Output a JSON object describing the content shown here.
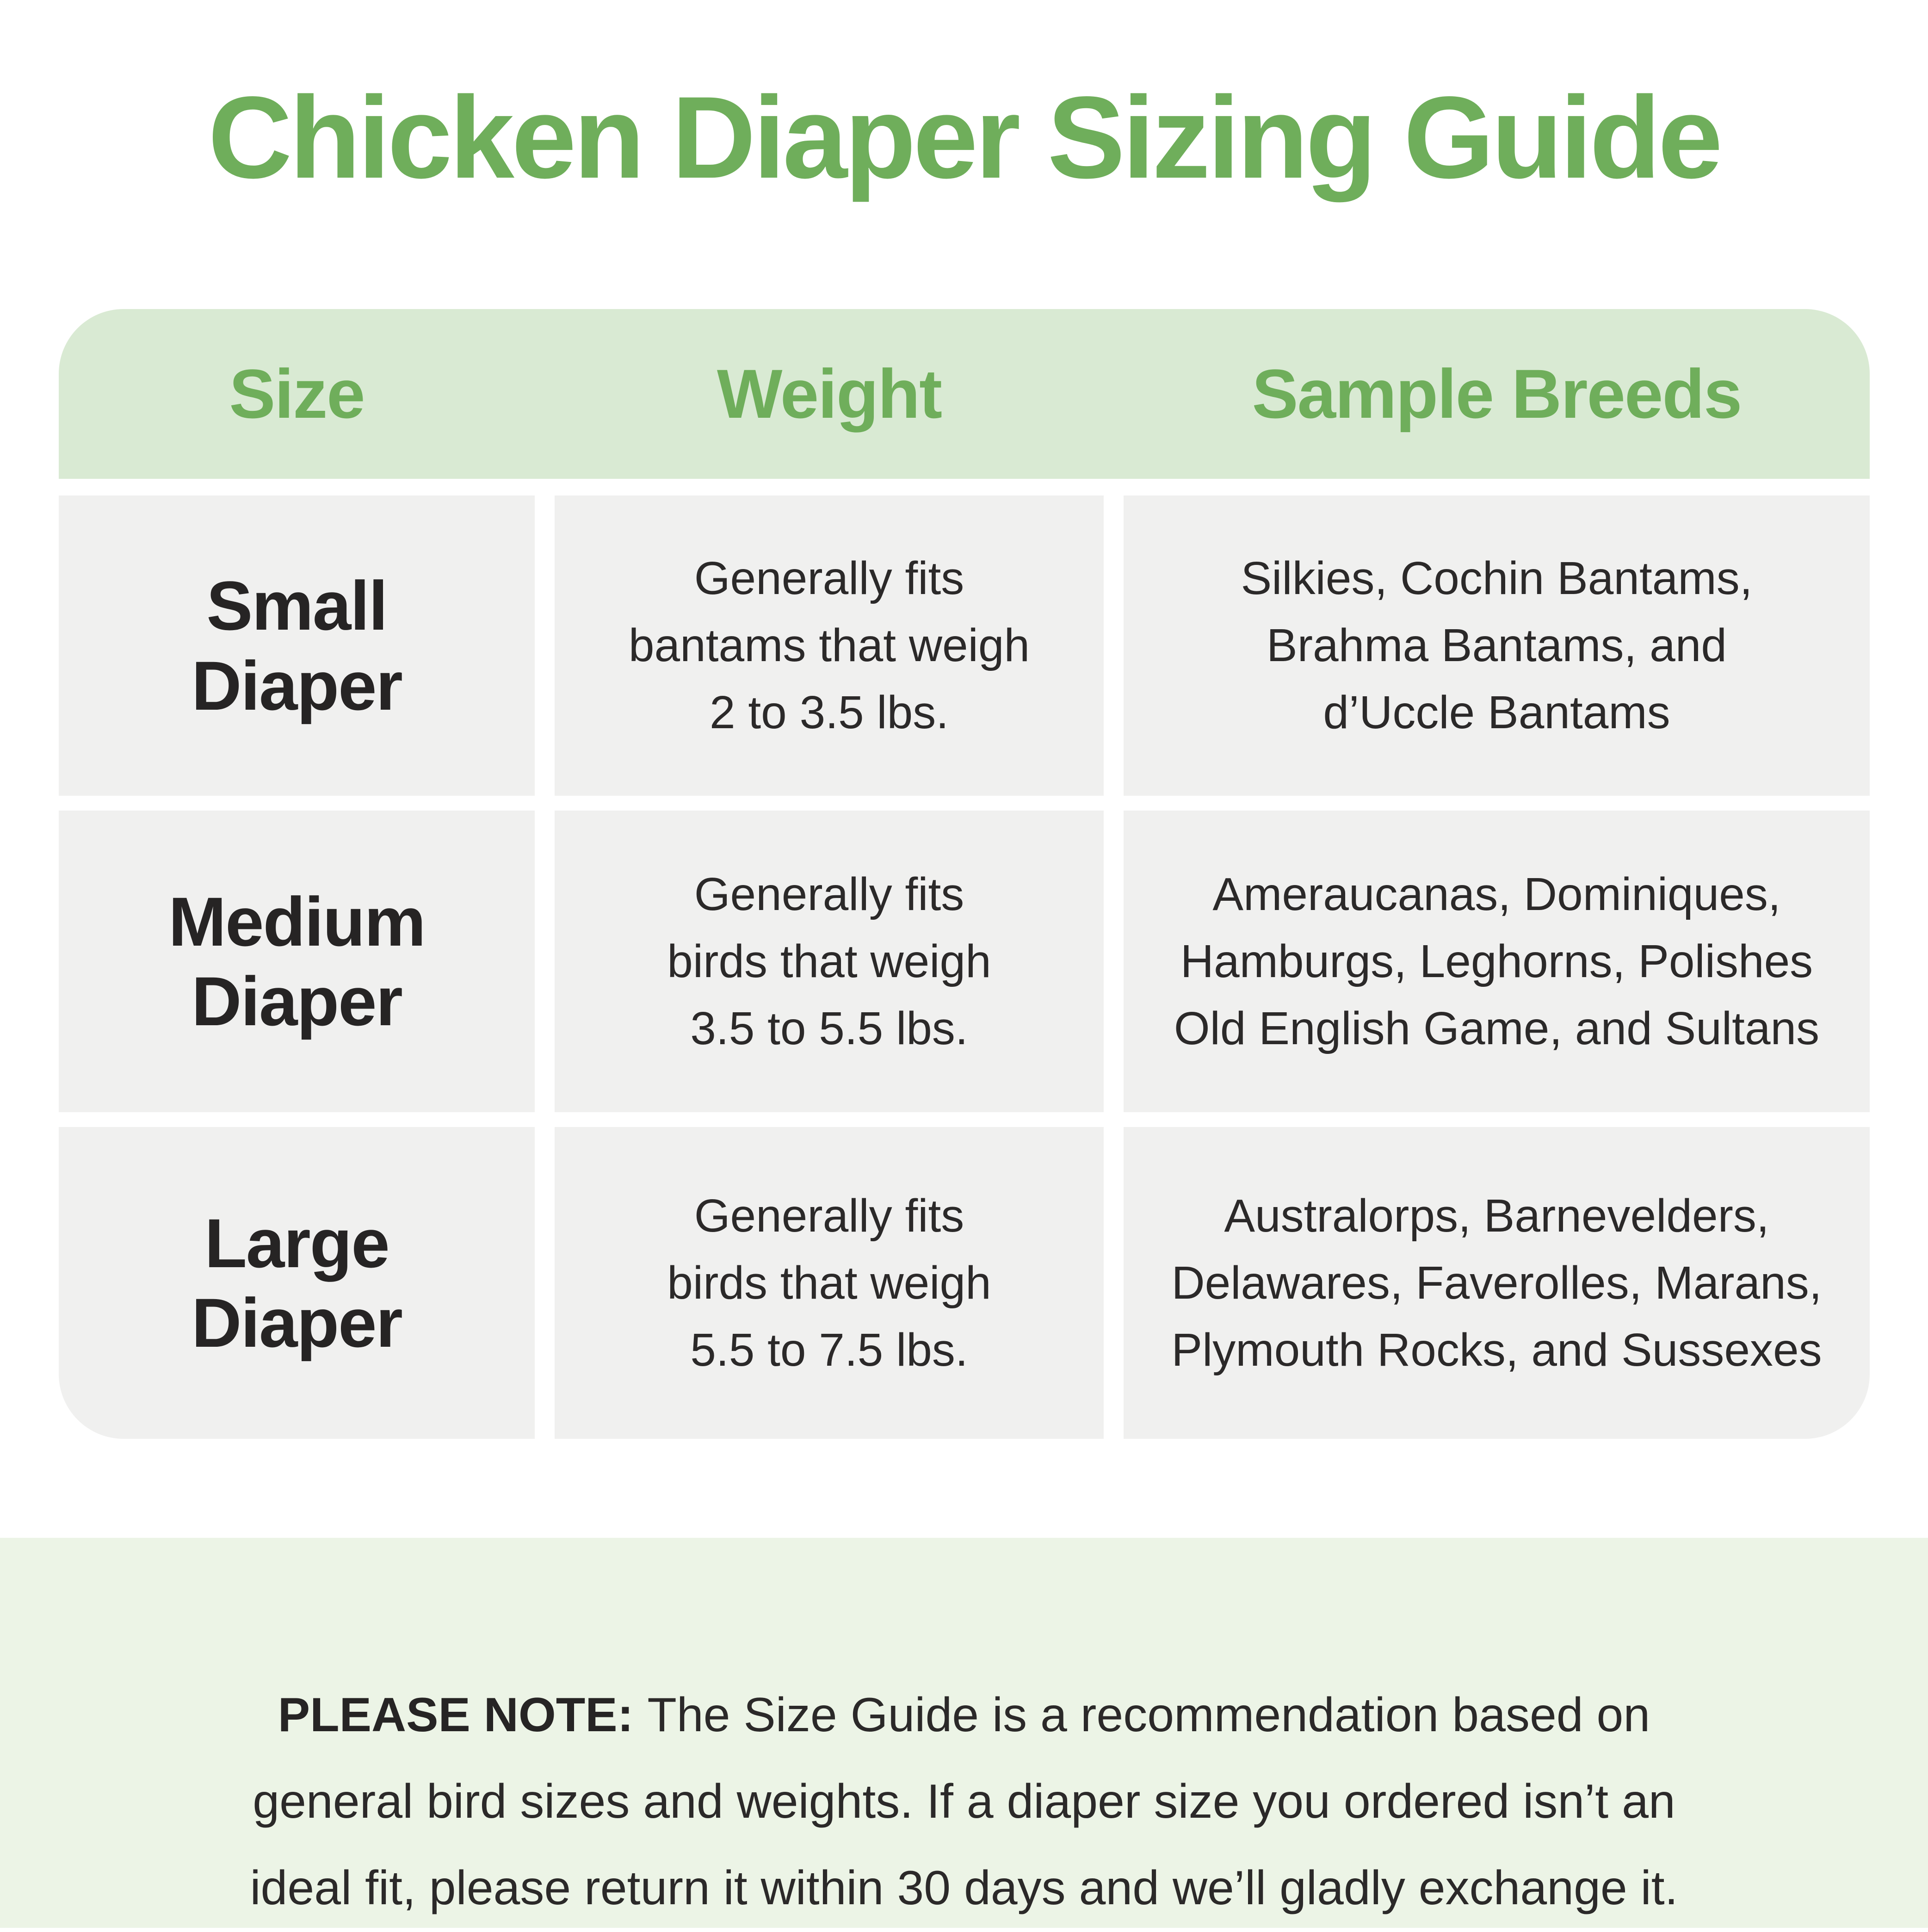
{
  "page": {
    "title": "Chicken Diaper Sizing Guide"
  },
  "colors": {
    "title_green": "#6FAE5B",
    "header_bg": "#D9EAD3",
    "cell_bg": "#F0F0EF",
    "footer_bg": "#ECF4E6",
    "text_dark": "#2B2929"
  },
  "table": {
    "headers": [
      "Size",
      "Weight",
      "Sample Breeds"
    ],
    "rows": [
      {
        "size": "Small\nDiaper",
        "weight": "Generally fits\nbantams that weigh\n2 to 3.5 lbs.",
        "breeds": "Silkies, Cochin Bantams,\nBrahma Bantams, and\nd’Uccle Bantams"
      },
      {
        "size": "Medium\nDiaper",
        "weight": "Generally fits\nbirds that weigh\n3.5 to 5.5 lbs.",
        "breeds": "Ameraucanas, Dominiques,\nHamburgs, Leghorns, Polishes\nOld English Game, and Sultans"
      },
      {
        "size": "Large\nDiaper",
        "weight": "Generally fits\nbirds that weigh\n5.5 to 7.5 lbs.",
        "breeds": "Australorps, Barnevelders,\nDelawares, Faverolles, Marans,\nPlymouth Rocks, and Sussexes"
      }
    ]
  },
  "footer": {
    "note_label": "PLEASE NOTE:",
    "note_text": "The Size Guide is a recommendation based on\ngeneral bird sizes and weights. If a diaper size you ordered isn’t an\nideal fit, please return it within 30 days and we’ll gladly exchange it."
  }
}
